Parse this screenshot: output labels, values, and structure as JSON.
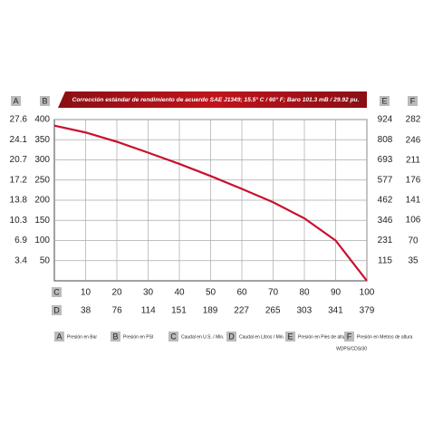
{
  "chart_data": {
    "type": "line",
    "title": "Corrección estándar de rendimiento de acuerdo SAE J1349; 15.5° C / 60° F; Baro 101.3 mB / 29.92 pu.",
    "x": [
      0,
      10,
      20,
      30,
      40,
      50,
      60,
      70,
      80,
      90,
      100
    ],
    "series": [
      {
        "color": "#c8102e",
        "values": [
          385,
          368,
          345,
          318,
          290,
          260,
          228,
          195,
          155,
          100,
          0
        ]
      }
    ],
    "xlim": [
      0,
      100
    ],
    "xticks": [
      10,
      20,
      30,
      40,
      50,
      60,
      70,
      80,
      90,
      100
    ],
    "ylim": [
      0,
      400
    ],
    "yticks": [
      50,
      100,
      150,
      200,
      250,
      300,
      350,
      400
    ],
    "grid": true,
    "y_axis": {
      "letter": "B",
      "label": "Presión en PSI"
    },
    "x_axis": {
      "letter": "C",
      "label": "Caudal en U.S. / Min."
    },
    "extra_axes": [
      {
        "letter": "A",
        "label": "Presión en Bar",
        "side": "left",
        "lim": [
          0,
          27.6
        ],
        "ticks": [
          3.4,
          6.9,
          10.3,
          13.8,
          17.2,
          20.7,
          24.1,
          27.6
        ]
      },
      {
        "letter": "D",
        "label": "Caudal en Litros / Min.",
        "side": "bottom",
        "lim": [
          0,
          379
        ],
        "ticks": [
          38,
          76,
          114,
          151,
          189,
          227,
          265,
          303,
          341,
          379
        ]
      },
      {
        "letter": "E",
        "label": "Presión en Pies de altura",
        "side": "right",
        "lim": [
          0,
          924
        ],
        "ticks": [
          115,
          231,
          346,
          462,
          577,
          693,
          808,
          924
        ]
      },
      {
        "letter": "F",
        "label": "Presión en Metros de altura",
        "side": "right",
        "lim": [
          0,
          282
        ],
        "ticks": [
          35,
          70,
          106,
          141,
          176,
          211,
          246,
          282
        ]
      }
    ],
    "footnote": "WDPS/CDS/30"
  }
}
